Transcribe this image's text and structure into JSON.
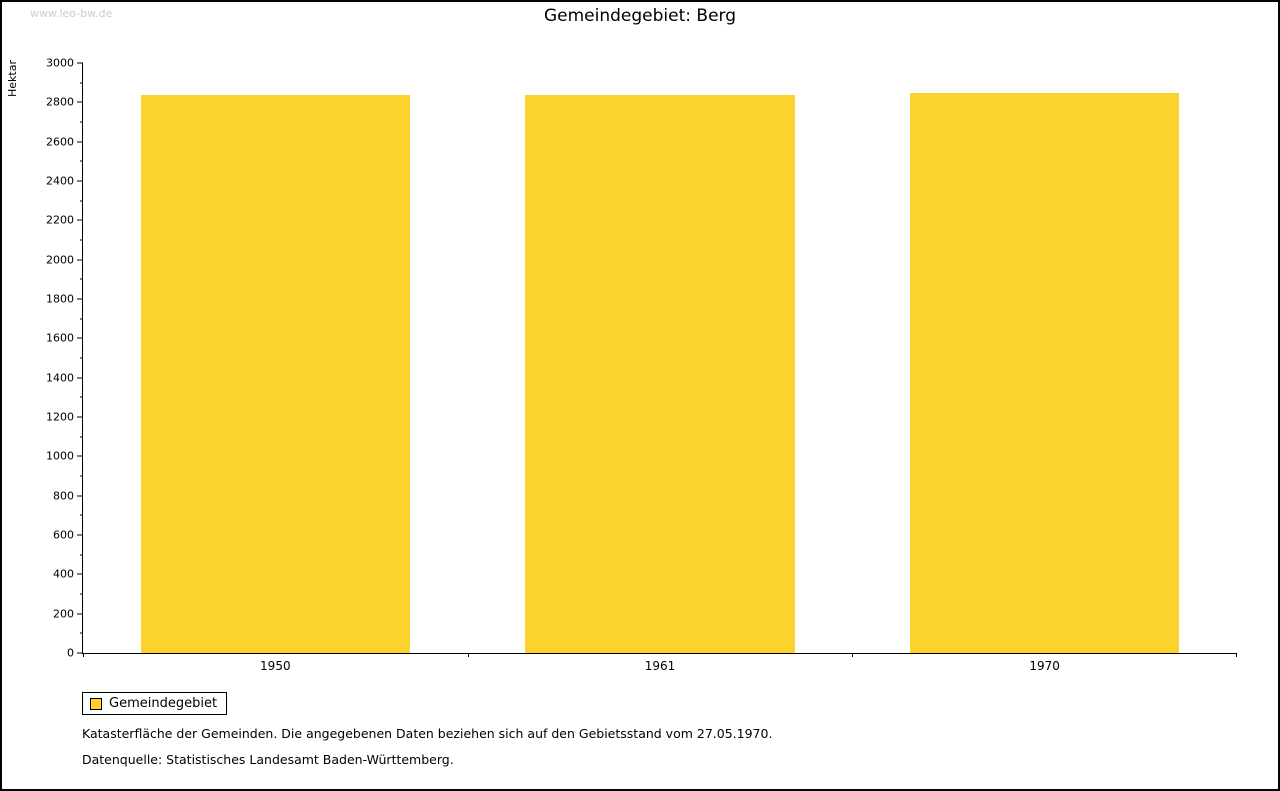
{
  "page": {
    "watermark": "www.leo-bw.de",
    "title": "Gemeindegebiet: Berg",
    "footnote1": "Katasterfläche der Gemeinden. Die angegebenen Daten beziehen sich auf den Gebietsstand vom 27.05.1970.",
    "footnote2": "Datenquelle: Statistisches Landesamt Baden-Württemberg."
  },
  "legend": {
    "label": "Gemeindegebiet",
    "color": "#FCD32B"
  },
  "chart_data": {
    "type": "bar",
    "title": "Gemeindegebiet: Berg",
    "categories": [
      "1950",
      "1961",
      "1970"
    ],
    "series": [
      {
        "name": "Gemeindegebiet",
        "values": [
          2838,
          2838,
          2848
        ]
      }
    ],
    "xlabel": "",
    "ylabel": "Hektar",
    "ylim": [
      0,
      3000
    ],
    "ytick_major": 200,
    "ytick_minor": 100,
    "bar_color": "#FCD32B",
    "grid": false,
    "legend_position": "bottom-left"
  }
}
